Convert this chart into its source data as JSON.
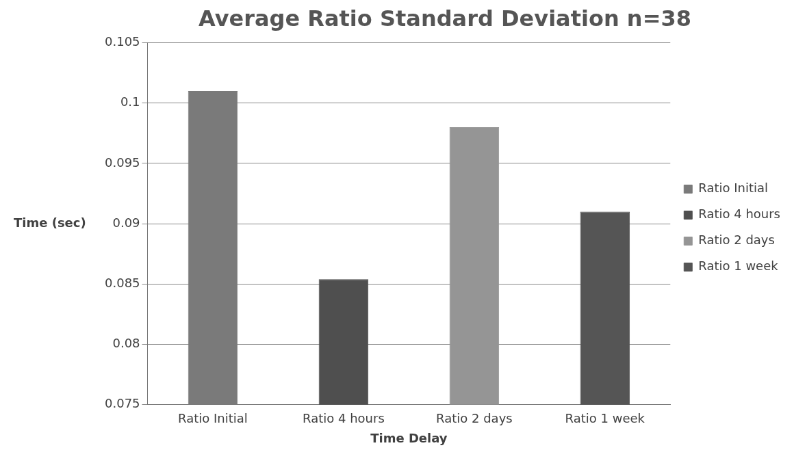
{
  "chart_data": {
    "type": "bar",
    "title": "Average Ratio Standard Deviation n=38",
    "xlabel": "Time Delay",
    "ylabel": "Time (sec)",
    "categories": [
      "Ratio Initial",
      "Ratio 4 hours",
      "Ratio 2 days",
      "Ratio 1 week"
    ],
    "series": [
      {
        "name": "Ratio Initial",
        "color": "#7a7a7a",
        "values": [
          0.101,
          null,
          null,
          null
        ]
      },
      {
        "name": "Ratio 4 hours",
        "color": "#4f4f4f",
        "values": [
          null,
          0.0854,
          null,
          null
        ]
      },
      {
        "name": "Ratio 2 days",
        "color": "#959595",
        "values": [
          null,
          null,
          0.098,
          null
        ]
      },
      {
        "name": "Ratio 1 week",
        "color": "#555555",
        "values": [
          null,
          null,
          null,
          0.091
        ]
      }
    ],
    "ylim": [
      0.075,
      0.105
    ],
    "yticks": [
      0.075,
      0.08,
      0.085,
      0.09,
      0.095,
      0.1,
      0.105
    ],
    "grid": "y",
    "legend": "right"
  }
}
